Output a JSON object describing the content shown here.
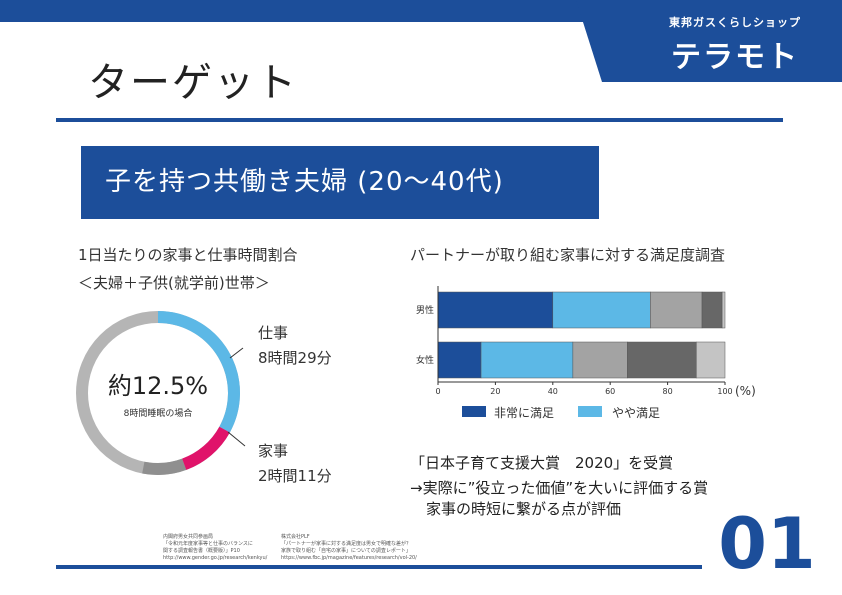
{
  "brand": {
    "subtitle": "東邦ガスくらしショップ",
    "name": "テラモト"
  },
  "title": "ターゲット",
  "banner": "子を持つ共働き夫婦 (20～40代)",
  "left_chart": {
    "heading1": "1日当たりの家事と仕事時間割合",
    "heading2": "＜夫婦＋子供(就学前)世帯＞",
    "center_main": "約12.5%",
    "center_sub": "8時間睡眠の場合",
    "work_label": "仕事",
    "work_time": "8時間29分",
    "housework_label": "家事",
    "housework_time": "2時間11分",
    "colors": {
      "work": "#5cb8e6",
      "housework": "#e0136a",
      "rest": "#b5b5b5",
      "other": "#8f8f8f"
    }
  },
  "chart_data": {
    "type": "bar",
    "title": "パートナーが取り組む家事に対する満足度調査",
    "orientation": "horizontal-stacked-100",
    "categories": [
      "男性",
      "女性"
    ],
    "series": [
      {
        "name": "非常に満足",
        "color": "#1c4e9a",
        "values": [
          40,
          15
        ]
      },
      {
        "name": "やや満足",
        "color": "#5cb8e6",
        "values": [
          34,
          32
        ]
      },
      {
        "name": "",
        "color": "#a3a3a3",
        "values": [
          18,
          19
        ]
      },
      {
        "name": "",
        "color": "#676767",
        "values": [
          7,
          24
        ]
      },
      {
        "name": "",
        "color": "#c4c4c4",
        "values": [
          1,
          10
        ]
      }
    ],
    "xlim": [
      0,
      100
    ],
    "xticks": [
      "0",
      "20",
      "40",
      "60",
      "80",
      "100"
    ],
    "unit": "(%)",
    "legend_position": "bottom"
  },
  "award": {
    "line1": "「日本子育て支援大賞　2020」を受賞",
    "line2": "→実際に”役立った価値”を大いに評価する賞",
    "line3": "家事の時短に繋がる点が評価"
  },
  "sources": {
    "left": [
      "内閣府男女共同参画局",
      "「令和元年度家事等と仕事のバランスに",
      "関する調査報告書（概要版）」P10",
      "http://www.gender.go.jp/research/kenkyu/"
    ],
    "right": [
      "株式会社PLF",
      "「パートナーが家事に対する満足度は男女で明確な差が？",
      "家族で取り組む「自宅の家事」についての調査レポート」",
      "https://www.fbc.jp/magazine/features/research/vol-20/"
    ]
  },
  "page_number": "01"
}
